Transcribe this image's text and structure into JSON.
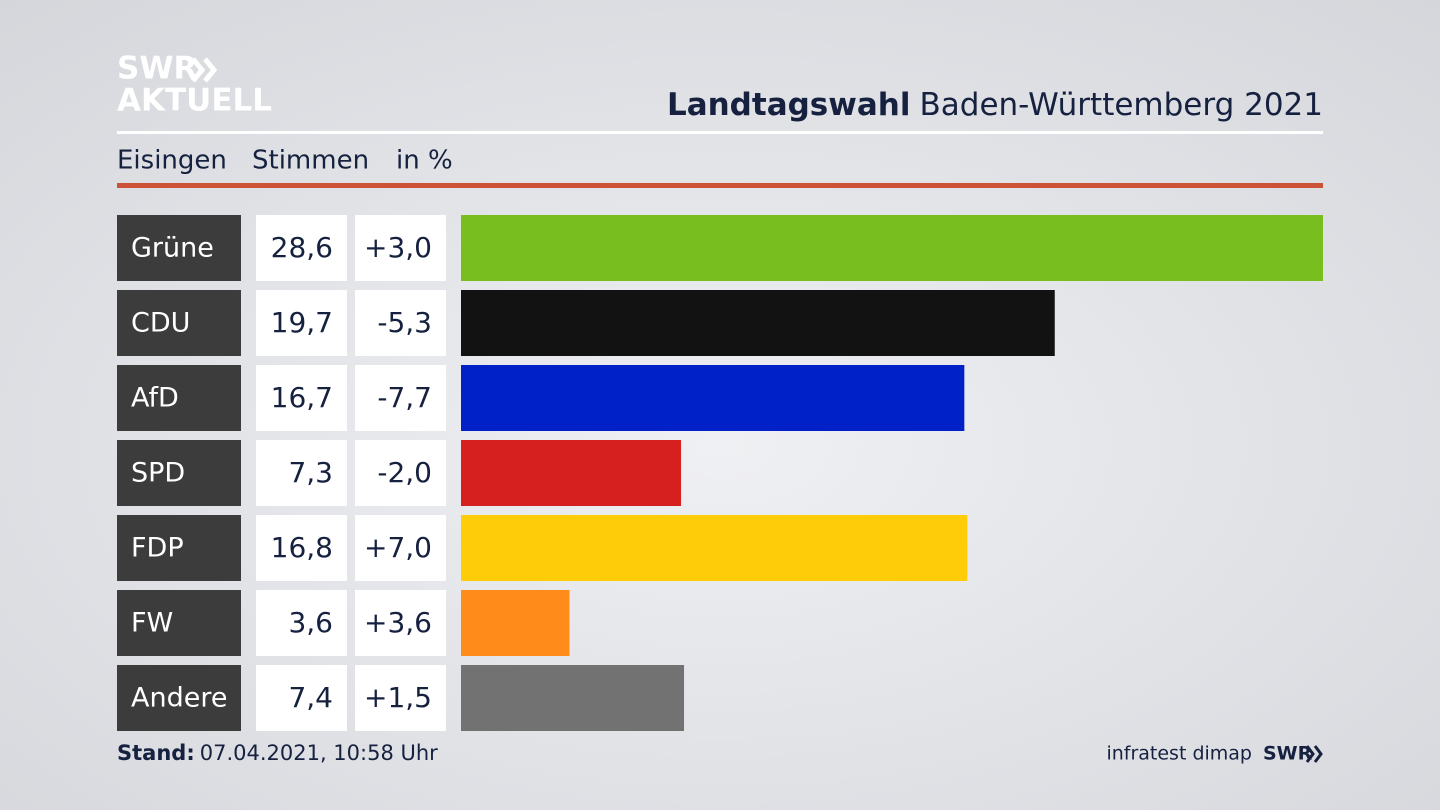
{
  "chart_data": {
    "type": "bar",
    "orientation": "horizontal",
    "brand": {
      "line1": "SWR",
      "line2": "AKTUELL"
    },
    "title_bold": "Landtagswahl",
    "title": "Baden-Württemberg 2021",
    "region": "Eisingen",
    "measure": "Stimmen",
    "unit": "in %",
    "categories": [
      "Grüne",
      "CDU",
      "AfD",
      "SPD",
      "FDP",
      "FW",
      "Andere"
    ],
    "values": [
      28.6,
      19.7,
      16.7,
      7.3,
      16.8,
      3.6,
      7.4
    ],
    "value_labels": [
      "28,6",
      "19,7",
      "16,7",
      "7,3",
      "16,8",
      "3,6",
      "7,4"
    ],
    "colors": [
      "#78be1e",
      "#121212",
      "#0021c8",
      "#d61f1f",
      "#ffcc0a",
      "#ff8c1a",
      "#727272"
    ],
    "change": {
      "values": [
        3.0,
        -5.3,
        -7.7,
        -2.0,
        7.0,
        3.6,
        1.5
      ],
      "value_labels": [
        "+3,0",
        "-5,3",
        "-7,7",
        "-2,0",
        "+7,0",
        "+3,6",
        "+1,5"
      ]
    },
    "footer": {
      "stand_label": "Stand:",
      "stand": "07.04.2021, 10:58 Uhr",
      "source": "infratest dimap",
      "logo": "SWR"
    }
  }
}
